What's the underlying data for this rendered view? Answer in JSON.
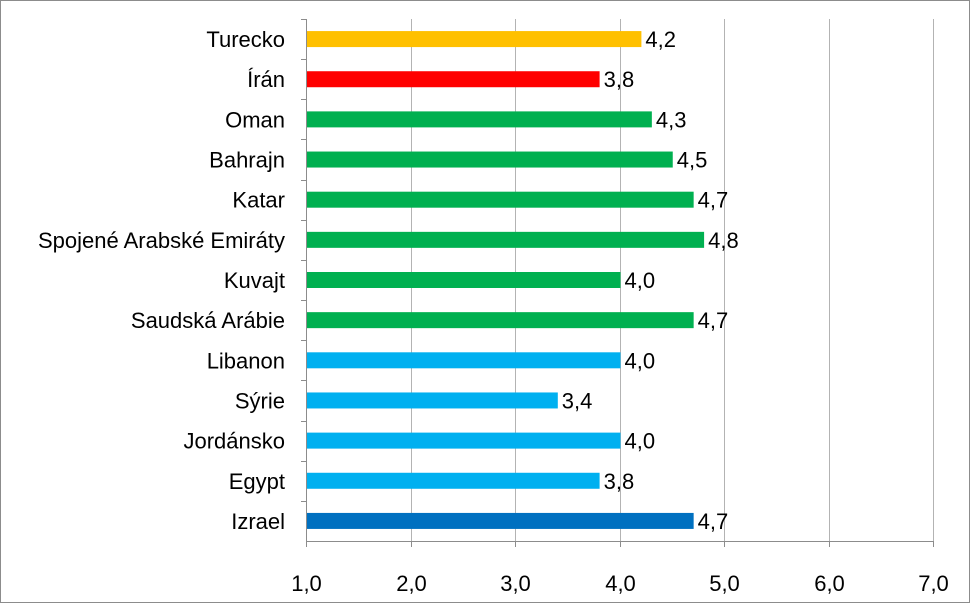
{
  "chart_data": {
    "type": "bar",
    "orientation": "horizontal",
    "categories": [
      "Turecko",
      "Írán",
      "Oman",
      "Bahrajn",
      "Katar",
      "Spojené Arabské Emiráty",
      "Kuvajt",
      "Saudská Arábie",
      "Libanon",
      "Sýrie",
      "Jordánsko",
      "Egypt",
      "Izrael"
    ],
    "values": [
      4.2,
      3.8,
      4.3,
      4.5,
      4.7,
      4.8,
      4.0,
      4.7,
      4.0,
      3.4,
      4.0,
      3.8,
      4.7
    ],
    "value_labels": [
      "4,2",
      "3,8",
      "4,3",
      "4,5",
      "4,7",
      "4,8",
      "4,0",
      "4,7",
      "4,0",
      "3,4",
      "4,0",
      "3,8",
      "4,7"
    ],
    "colors": [
      "#ffc000",
      "#ff0000",
      "#00b050",
      "#00b050",
      "#00b050",
      "#00b050",
      "#00b050",
      "#00b050",
      "#00b0f0",
      "#00b0f0",
      "#00b0f0",
      "#00b0f0",
      "#0070c0"
    ],
    "xlim": [
      1.0,
      7.0
    ],
    "xticks": [
      1.0,
      2.0,
      3.0,
      4.0,
      5.0,
      6.0,
      7.0
    ],
    "xtick_labels": [
      "1,0",
      "2,0",
      "3,0",
      "4,0",
      "5,0",
      "6,0",
      "7,0"
    ],
    "grid": "vertical",
    "legend": "none",
    "title": "",
    "xlabel": "",
    "ylabel": ""
  }
}
